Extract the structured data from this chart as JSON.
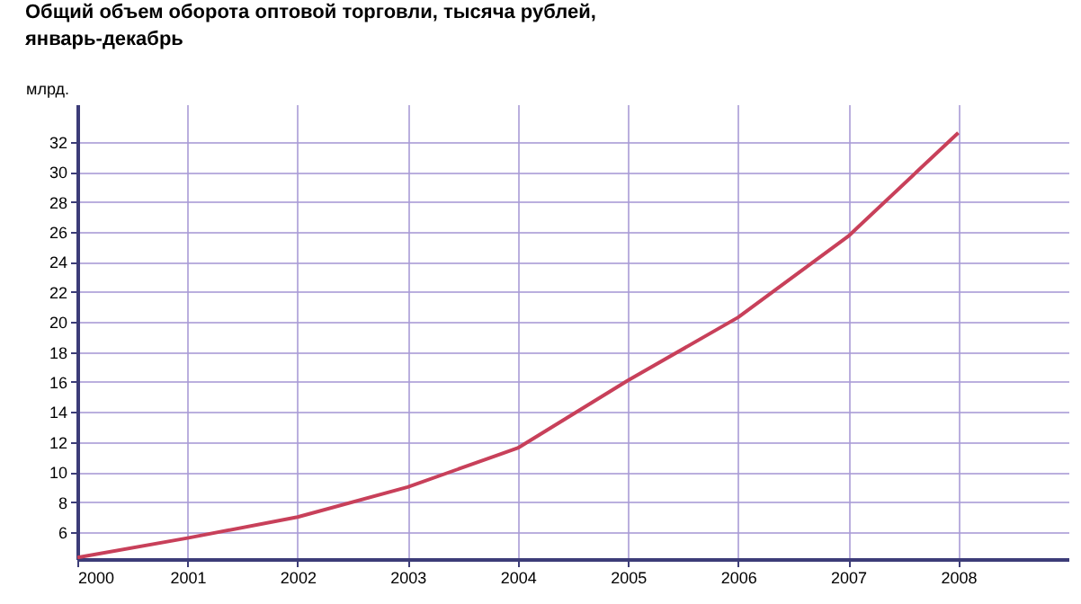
{
  "chart_data": {
    "type": "line",
    "title": "Общий объем оборота оптовой торговли, тысяча рублей,",
    "subtitle": "январь-декабрь",
    "ylabel": "млрд.",
    "x": [
      2000,
      2001,
      2002,
      2003,
      2004,
      2005,
      2006,
      2007,
      2008
    ],
    "series": [
      {
        "color": "#c8405a",
        "values": [
          4.3,
          5.6,
          7.0,
          9.0,
          11.6,
          16.1,
          20.3,
          25.7,
          32.6
        ]
      }
    ],
    "xlim": [
      2000,
      2009
    ],
    "xticks": [
      2000,
      2001,
      2002,
      2003,
      2004,
      2005,
      2006,
      2007,
      2008
    ],
    "ylim": [
      4.2,
      34.5
    ],
    "yticks": [
      6,
      8,
      10,
      12,
      14,
      16,
      18,
      20,
      22,
      24,
      26,
      28,
      30,
      32
    ],
    "grid": true,
    "legend": false,
    "marker": "none",
    "line_style": "solid"
  }
}
